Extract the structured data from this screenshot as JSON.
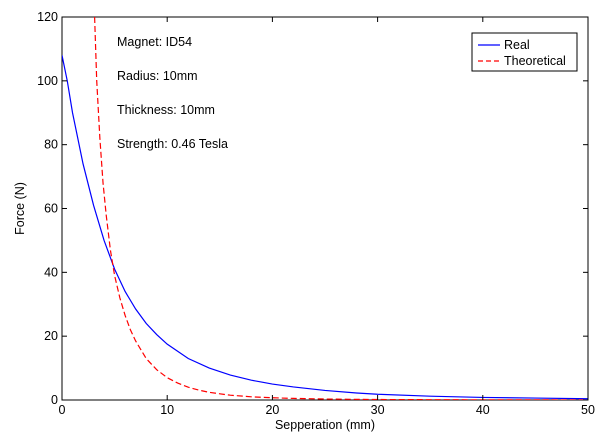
{
  "chart_data": {
    "type": "line",
    "title": "",
    "xlabel": "Sepperation (mm)",
    "ylabel": "Force (N)",
    "xlim": [
      0,
      50
    ],
    "ylim": [
      0,
      120
    ],
    "xticks": [
      0,
      10,
      20,
      30,
      40,
      50
    ],
    "yticks": [
      0,
      20,
      40,
      60,
      80,
      100,
      120
    ],
    "grid": false,
    "legend_position": "top-right",
    "annotations": [
      "Magnet: ID54",
      "Radius: 10mm",
      "Thickness: 10mm",
      "Strength: 0.46 Tesla"
    ],
    "series": [
      {
        "name": "Real",
        "color": "#0000ff",
        "style": "solid",
        "x": [
          0,
          0.5,
          1,
          1.5,
          2,
          3,
          4,
          5,
          6,
          7,
          8,
          9,
          10,
          12,
          14,
          16,
          18,
          20,
          22,
          25,
          28,
          30,
          35,
          40,
          45,
          50
        ],
        "y": [
          108,
          100,
          90,
          82,
          74,
          61,
          50,
          41,
          34,
          28.5,
          24,
          20.5,
          17.5,
          13,
          10,
          7.8,
          6.2,
          5,
          4.1,
          3,
          2.2,
          1.8,
          1.2,
          0.8,
          0.6,
          0.4
        ]
      },
      {
        "name": "Theoretical",
        "color": "#ff0000",
        "style": "dashed",
        "x": [
          3.1,
          3.3,
          3.6,
          3.9,
          4.2,
          4.6,
          5,
          5.5,
          6,
          6.5,
          7,
          8,
          9,
          10,
          11,
          12,
          13,
          14,
          16,
          18,
          20,
          22,
          25,
          28,
          30,
          35,
          40,
          45,
          50
        ],
        "y": [
          120,
          100,
          82,
          68,
          58,
          47,
          39,
          32,
          26.5,
          22,
          18.5,
          13,
          9.5,
          7,
          5.3,
          4,
          3.1,
          2.4,
          1.5,
          1,
          0.7,
          0.5,
          0.3,
          0.2,
          0.15,
          0.1,
          0.05,
          0.03,
          0.02
        ]
      }
    ]
  }
}
